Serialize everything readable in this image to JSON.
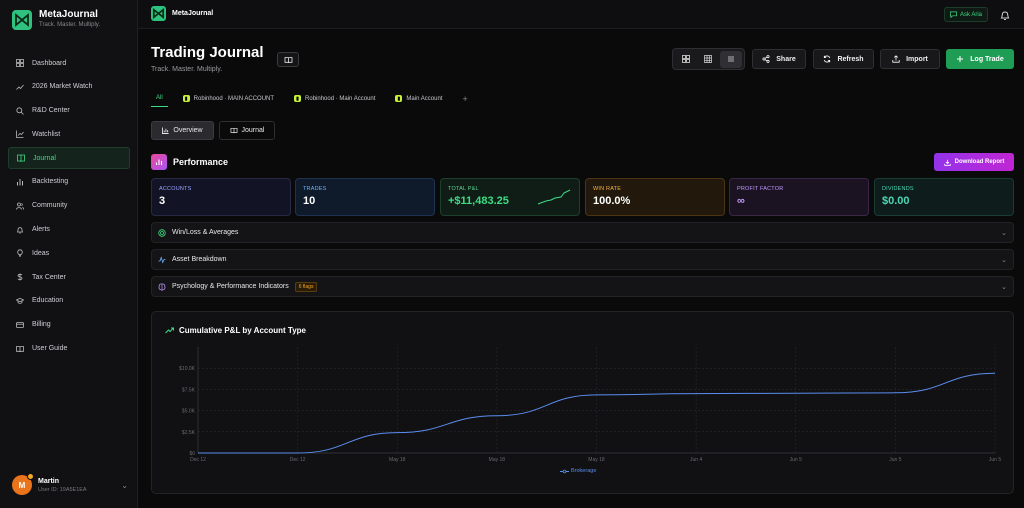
{
  "app": {
    "name": "MetaJournal",
    "tagline": "Track. Master. Multiply."
  },
  "sidebar": {
    "items": [
      {
        "label": "Dashboard",
        "icon": "grid-icon"
      },
      {
        "label": "2026 Market Watch",
        "icon": "trend-icon"
      },
      {
        "label": "R&D Center",
        "icon": "search-icon"
      },
      {
        "label": "Watchlist",
        "icon": "chart-line-icon"
      },
      {
        "label": "Journal",
        "icon": "book-icon",
        "active": true
      },
      {
        "label": "Backtesting",
        "icon": "bar-chart-icon"
      },
      {
        "label": "Community",
        "icon": "users-icon"
      },
      {
        "label": "Alerts",
        "icon": "bell-icon"
      },
      {
        "label": "Ideas",
        "icon": "bulb-icon"
      },
      {
        "label": "Tax Center",
        "icon": "dollar-icon"
      },
      {
        "label": "Education",
        "icon": "cap-icon"
      },
      {
        "label": "Billing",
        "icon": "card-icon"
      },
      {
        "label": "User Guide",
        "icon": "book-open-icon"
      }
    ],
    "user": {
      "initial": "M",
      "name": "Martin",
      "id": "User ID: 19A5E1EA"
    }
  },
  "topbar": {
    "brand": "MetaJournal",
    "ask": "Ask Aria"
  },
  "page": {
    "title": "Trading Journal",
    "subtitle": "Track. Master. Multiply.",
    "buttons": {
      "share": "Share",
      "refresh": "Refresh",
      "import": "Import",
      "log": "Log Trade"
    },
    "account_tabs": [
      {
        "label": "All"
      },
      {
        "label": "Robinhood · MAIN ACCOUNT"
      },
      {
        "label": "Robinhood · Main Account"
      },
      {
        "label": "Main Account"
      }
    ],
    "view_tabs": {
      "overview": "Overview",
      "journal": "Journal"
    },
    "performance": {
      "title": "Performance",
      "download": "Download Report",
      "stats": [
        {
          "label": "ACCOUNTS",
          "value": "3"
        },
        {
          "label": "TRADES",
          "value": "10"
        },
        {
          "label": "TOTAL P&L",
          "value": "+$11,483.25"
        },
        {
          "label": "WIN RATE",
          "value": "100.0%"
        },
        {
          "label": "PROFIT FACTOR",
          "value": "∞"
        },
        {
          "label": "DIVIDENDS",
          "value": "$0.00"
        }
      ]
    },
    "sections": {
      "winloss": "Win/Loss & Averages",
      "asset": "Asset Breakdown",
      "psych": "Psychology & Performance Indicators",
      "psych_flag": "6 flags"
    }
  },
  "chart_data": {
    "type": "line",
    "title": "Cumulative P&L by Account Type",
    "x": [
      "Dec 12",
      "Dec 12",
      "May 18",
      "May 18",
      "May 18",
      "Jun 4",
      "Jun 5",
      "Jun 5",
      "Jun 5"
    ],
    "yticks": [
      "$0",
      "$2.5K",
      "$5.0K",
      "$7.5K",
      "$10.0K"
    ],
    "ylim": [
      0,
      10000
    ],
    "series": [
      {
        "name": "Brokerage",
        "color": "#5b8def",
        "values": [
          0,
          0,
          2400,
          4400,
          6850,
          7000,
          7050,
          7100,
          9400
        ]
      }
    ],
    "grid": true
  }
}
